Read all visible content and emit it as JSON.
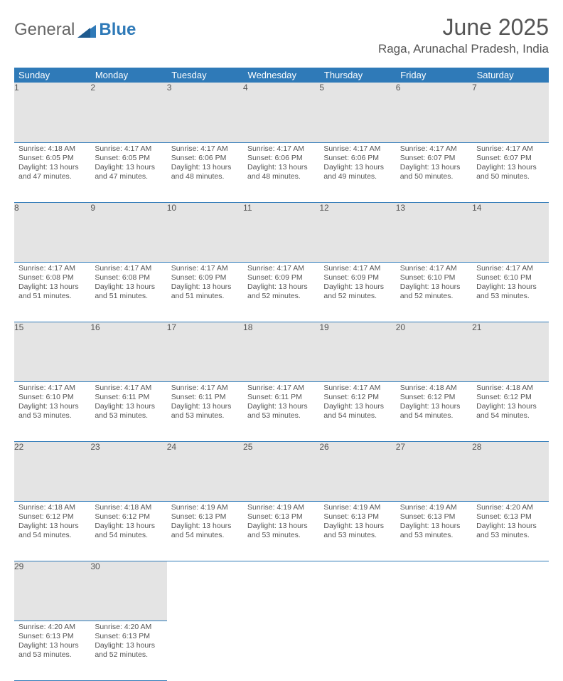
{
  "logo": {
    "part1": "General",
    "part2": "Blue"
  },
  "title": "June 2025",
  "location": "Raga, Arunachal Pradesh, India",
  "colors": {
    "header_bg": "#2f7ab8",
    "header_fg": "#ffffff",
    "daynum_bg": "#e4e4e4",
    "text": "#555555",
    "rule": "#2f7ab8",
    "page_bg": "#ffffff"
  },
  "fonts": {
    "title_size": 32,
    "location_size": 17,
    "weekday_size": 13,
    "cell_size": 10.5
  },
  "weekdays": [
    "Sunday",
    "Monday",
    "Tuesday",
    "Wednesday",
    "Thursday",
    "Friday",
    "Saturday"
  ],
  "weeks": [
    [
      {
        "n": "1",
        "sunrise": "Sunrise: 4:18 AM",
        "sunset": "Sunset: 6:05 PM",
        "day": "Daylight: 13 hours and 47 minutes."
      },
      {
        "n": "2",
        "sunrise": "Sunrise: 4:17 AM",
        "sunset": "Sunset: 6:05 PM",
        "day": "Daylight: 13 hours and 47 minutes."
      },
      {
        "n": "3",
        "sunrise": "Sunrise: 4:17 AM",
        "sunset": "Sunset: 6:06 PM",
        "day": "Daylight: 13 hours and 48 minutes."
      },
      {
        "n": "4",
        "sunrise": "Sunrise: 4:17 AM",
        "sunset": "Sunset: 6:06 PM",
        "day": "Daylight: 13 hours and 48 minutes."
      },
      {
        "n": "5",
        "sunrise": "Sunrise: 4:17 AM",
        "sunset": "Sunset: 6:06 PM",
        "day": "Daylight: 13 hours and 49 minutes."
      },
      {
        "n": "6",
        "sunrise": "Sunrise: 4:17 AM",
        "sunset": "Sunset: 6:07 PM",
        "day": "Daylight: 13 hours and 50 minutes."
      },
      {
        "n": "7",
        "sunrise": "Sunrise: 4:17 AM",
        "sunset": "Sunset: 6:07 PM",
        "day": "Daylight: 13 hours and 50 minutes."
      }
    ],
    [
      {
        "n": "8",
        "sunrise": "Sunrise: 4:17 AM",
        "sunset": "Sunset: 6:08 PM",
        "day": "Daylight: 13 hours and 51 minutes."
      },
      {
        "n": "9",
        "sunrise": "Sunrise: 4:17 AM",
        "sunset": "Sunset: 6:08 PM",
        "day": "Daylight: 13 hours and 51 minutes."
      },
      {
        "n": "10",
        "sunrise": "Sunrise: 4:17 AM",
        "sunset": "Sunset: 6:09 PM",
        "day": "Daylight: 13 hours and 51 minutes."
      },
      {
        "n": "11",
        "sunrise": "Sunrise: 4:17 AM",
        "sunset": "Sunset: 6:09 PM",
        "day": "Daylight: 13 hours and 52 minutes."
      },
      {
        "n": "12",
        "sunrise": "Sunrise: 4:17 AM",
        "sunset": "Sunset: 6:09 PM",
        "day": "Daylight: 13 hours and 52 minutes."
      },
      {
        "n": "13",
        "sunrise": "Sunrise: 4:17 AM",
        "sunset": "Sunset: 6:10 PM",
        "day": "Daylight: 13 hours and 52 minutes."
      },
      {
        "n": "14",
        "sunrise": "Sunrise: 4:17 AM",
        "sunset": "Sunset: 6:10 PM",
        "day": "Daylight: 13 hours and 53 minutes."
      }
    ],
    [
      {
        "n": "15",
        "sunrise": "Sunrise: 4:17 AM",
        "sunset": "Sunset: 6:10 PM",
        "day": "Daylight: 13 hours and 53 minutes."
      },
      {
        "n": "16",
        "sunrise": "Sunrise: 4:17 AM",
        "sunset": "Sunset: 6:11 PM",
        "day": "Daylight: 13 hours and 53 minutes."
      },
      {
        "n": "17",
        "sunrise": "Sunrise: 4:17 AM",
        "sunset": "Sunset: 6:11 PM",
        "day": "Daylight: 13 hours and 53 minutes."
      },
      {
        "n": "18",
        "sunrise": "Sunrise: 4:17 AM",
        "sunset": "Sunset: 6:11 PM",
        "day": "Daylight: 13 hours and 53 minutes."
      },
      {
        "n": "19",
        "sunrise": "Sunrise: 4:17 AM",
        "sunset": "Sunset: 6:12 PM",
        "day": "Daylight: 13 hours and 54 minutes."
      },
      {
        "n": "20",
        "sunrise": "Sunrise: 4:18 AM",
        "sunset": "Sunset: 6:12 PM",
        "day": "Daylight: 13 hours and 54 minutes."
      },
      {
        "n": "21",
        "sunrise": "Sunrise: 4:18 AM",
        "sunset": "Sunset: 6:12 PM",
        "day": "Daylight: 13 hours and 54 minutes."
      }
    ],
    [
      {
        "n": "22",
        "sunrise": "Sunrise: 4:18 AM",
        "sunset": "Sunset: 6:12 PM",
        "day": "Daylight: 13 hours and 54 minutes."
      },
      {
        "n": "23",
        "sunrise": "Sunrise: 4:18 AM",
        "sunset": "Sunset: 6:12 PM",
        "day": "Daylight: 13 hours and 54 minutes."
      },
      {
        "n": "24",
        "sunrise": "Sunrise: 4:19 AM",
        "sunset": "Sunset: 6:13 PM",
        "day": "Daylight: 13 hours and 54 minutes."
      },
      {
        "n": "25",
        "sunrise": "Sunrise: 4:19 AM",
        "sunset": "Sunset: 6:13 PM",
        "day": "Daylight: 13 hours and 53 minutes."
      },
      {
        "n": "26",
        "sunrise": "Sunrise: 4:19 AM",
        "sunset": "Sunset: 6:13 PM",
        "day": "Daylight: 13 hours and 53 minutes."
      },
      {
        "n": "27",
        "sunrise": "Sunrise: 4:19 AM",
        "sunset": "Sunset: 6:13 PM",
        "day": "Daylight: 13 hours and 53 minutes."
      },
      {
        "n": "28",
        "sunrise": "Sunrise: 4:20 AM",
        "sunset": "Sunset: 6:13 PM",
        "day": "Daylight: 13 hours and 53 minutes."
      }
    ],
    [
      {
        "n": "29",
        "sunrise": "Sunrise: 4:20 AM",
        "sunset": "Sunset: 6:13 PM",
        "day": "Daylight: 13 hours and 53 minutes."
      },
      {
        "n": "30",
        "sunrise": "Sunrise: 4:20 AM",
        "sunset": "Sunset: 6:13 PM",
        "day": "Daylight: 13 hours and 52 minutes."
      },
      null,
      null,
      null,
      null,
      null
    ]
  ]
}
